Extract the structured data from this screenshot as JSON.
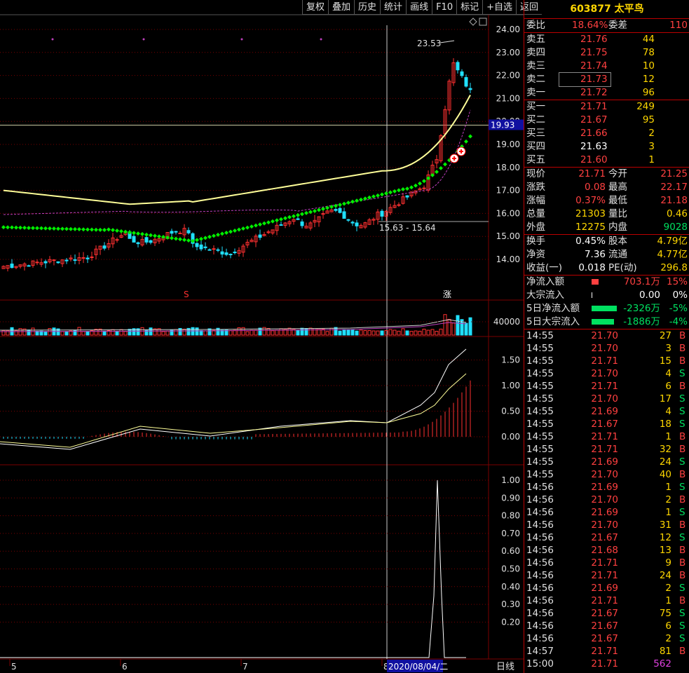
{
  "toolbar": [
    "复权",
    "叠加",
    "历史",
    "统计",
    "画线",
    "F10",
    "标记",
    "+自选",
    "返回"
  ],
  "stock": {
    "code": "603877",
    "name": "太平鸟"
  },
  "ratio": {
    "label1": "委比",
    "value1": "18.64%",
    "label2": "委差",
    "value2": "110"
  },
  "asks": [
    {
      "label": "卖五",
      "price": "21.76",
      "vol": "44"
    },
    {
      "label": "卖四",
      "price": "21.75",
      "vol": "78"
    },
    {
      "label": "卖三",
      "price": "21.74",
      "vol": "10"
    },
    {
      "label": "卖二",
      "price": "21.73",
      "vol": "12"
    },
    {
      "label": "卖一",
      "price": "21.72",
      "vol": "96"
    }
  ],
  "bids": [
    {
      "label": "买一",
      "price": "21.71",
      "vol": "249"
    },
    {
      "label": "买二",
      "price": "21.67",
      "vol": "95"
    },
    {
      "label": "买三",
      "price": "21.66",
      "vol": "2"
    },
    {
      "label": "买四",
      "price": "21.63",
      "vol": "3"
    },
    {
      "label": "买五",
      "price": "21.60",
      "vol": "1"
    }
  ],
  "quote": [
    {
      "l1": "现价",
      "v1": "21.71",
      "l2": "今开",
      "v2": "21.25"
    },
    {
      "l1": "涨跌",
      "v1": "0.08",
      "l2": "最高",
      "v2": "22.17"
    },
    {
      "l1": "涨幅",
      "v1": "0.37%",
      "l2": "最低",
      "v2": "21.18"
    },
    {
      "l1": "总量",
      "v1": "21303",
      "l2": "量比",
      "v2": "0.46"
    },
    {
      "l1": "外盘",
      "v1": "12275",
      "l2": "内盘",
      "v2": "9028"
    }
  ],
  "fund": [
    {
      "l1": "换手",
      "v1": "0.45%",
      "l2": "股本",
      "v2": "4.79亿"
    },
    {
      "l1": "净资",
      "v1": "7.36",
      "l2": "流通",
      "v2": "4.77亿"
    },
    {
      "l1": "收益(一)",
      "v1": "0.018",
      "l2": "PE(动)",
      "v2": "296.8"
    }
  ],
  "flow": [
    {
      "label": "净流入额",
      "value": "703.1万",
      "pct": "15%",
      "color": "#ff4040"
    },
    {
      "label": "大宗流入",
      "value": "0.00",
      "pct": "0%",
      "color": "#ffffff"
    },
    {
      "label": "5日净流入额",
      "value": "-2326万",
      "pct": "-5%",
      "color": "#00e060"
    },
    {
      "label": "5日大宗流入",
      "value": "-1886万",
      "pct": "-4%",
      "color": "#00e060"
    }
  ],
  "ticks": [
    [
      "14:55",
      "21.70",
      "27",
      "B"
    ],
    [
      "14:55",
      "21.70",
      "3",
      "B"
    ],
    [
      "14:55",
      "21.71",
      "15",
      "B"
    ],
    [
      "14:55",
      "21.70",
      "4",
      "S"
    ],
    [
      "14:55",
      "21.71",
      "6",
      "B"
    ],
    [
      "14:55",
      "21.70",
      "17",
      "S"
    ],
    [
      "14:55",
      "21.69",
      "4",
      "S"
    ],
    [
      "14:55",
      "21.67",
      "18",
      "S"
    ],
    [
      "14:55",
      "21.71",
      "1",
      "B"
    ],
    [
      "14:55",
      "21.71",
      "32",
      "B"
    ],
    [
      "14:55",
      "21.69",
      "24",
      "S"
    ],
    [
      "14:55",
      "21.70",
      "40",
      "B"
    ],
    [
      "14:56",
      "21.69",
      "1",
      "S"
    ],
    [
      "14:56",
      "21.70",
      "2",
      "B"
    ],
    [
      "14:56",
      "21.69",
      "1",
      "S"
    ],
    [
      "14:56",
      "21.70",
      "31",
      "B"
    ],
    [
      "14:56",
      "21.67",
      "12",
      "S"
    ],
    [
      "14:56",
      "21.68",
      "13",
      "B"
    ],
    [
      "14:56",
      "21.71",
      "9",
      "B"
    ],
    [
      "14:56",
      "21.71",
      "24",
      "B"
    ],
    [
      "14:56",
      "21.69",
      "2",
      "S"
    ],
    [
      "14:56",
      "21.71",
      "1",
      "B"
    ],
    [
      "14:56",
      "21.67",
      "75",
      "S"
    ],
    [
      "14:56",
      "21.67",
      "6",
      "S"
    ],
    [
      "14:56",
      "21.67",
      "2",
      "S"
    ],
    [
      "14:57",
      "21.71",
      "81",
      "B"
    ],
    [
      "15:00",
      "21.71",
      "562",
      ""
    ]
  ],
  "chart_data": {
    "type": "candlestick",
    "price_axis": [
      "24.00",
      "23.00",
      "22.00",
      "21.00",
      "20.00",
      "19.00",
      "18.00",
      "17.00",
      "16.00",
      "15.00",
      "14.00"
    ],
    "price_ylim": [
      13.5,
      24.5
    ],
    "current_price_tag": "19.93",
    "high_annotation": "23.53",
    "range_annotation": "15.63 - 15.64",
    "volume_axis": [
      "40000"
    ],
    "macd_axis": [
      "1.50",
      "1.00",
      "0.50",
      "0.00"
    ],
    "ind_axis": [
      "1.00",
      "0.90",
      "0.80",
      "0.70",
      "0.60",
      "0.50",
      "0.40",
      "0.30",
      "0.20"
    ],
    "month_labels": [
      "5",
      "6",
      "7",
      "8"
    ],
    "date_label": "2020/08/04/二",
    "period_label": "日线",
    "markers": [
      "S",
      "涨"
    ],
    "colors": {
      "up": "#ff3030",
      "down": "#20e0ff",
      "ma": "#ffff99",
      "sar": "#00ee00",
      "ma2": "#c040c0",
      "grid": "#7a0000"
    }
  }
}
